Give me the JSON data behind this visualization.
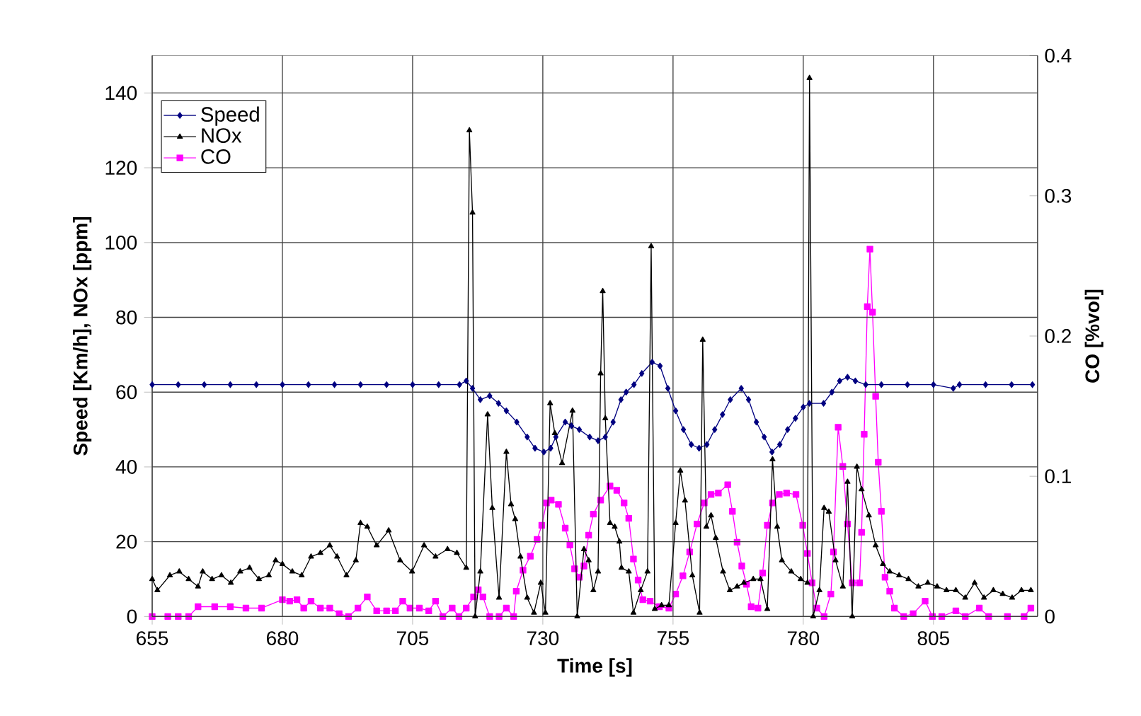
{
  "chart_data": {
    "type": "line",
    "xlabel": "Time [s]",
    "ylabel": "Speed [Km/h], NOx [ppm]",
    "y2label": "CO [%vol]",
    "xlim": [
      655,
      825
    ],
    "xticks": [
      655,
      680,
      705,
      730,
      755,
      780,
      805
    ],
    "ylim": [
      0,
      150
    ],
    "yticks": [
      0,
      20,
      40,
      60,
      80,
      100,
      120,
      140
    ],
    "y2lim": [
      0,
      0.4
    ],
    "y2ticks": [
      0,
      0.1,
      0.2,
      0.3,
      0.4
    ],
    "grid": true,
    "legend": "top left",
    "series": [
      {
        "name": "Speed",
        "color": "#000080",
        "marker": "diamond",
        "x": [
          655,
          660,
          665,
          670,
          675,
          680,
          685,
          690,
          695,
          700,
          705,
          710,
          714,
          715.3,
          716.5,
          718,
          719.8,
          721.5,
          723,
          725,
          727,
          728.5,
          730.2,
          731.5,
          732.5,
          734.3,
          735.5,
          737,
          739,
          740.6,
          742,
          743.5,
          745,
          746,
          747.5,
          749,
          751,
          752.5,
          754,
          755.5,
          757,
          758.5,
          760,
          761.5,
          763,
          764.5,
          766,
          768.1,
          769.5,
          771,
          772.5,
          774,
          775.5,
          777,
          778.5,
          780,
          781.2,
          783.9,
          785.5,
          787,
          788.5,
          790,
          792,
          795,
          800,
          805,
          808.8,
          810,
          815,
          820,
          824
        ],
        "values": [
          62,
          62,
          62,
          62,
          62,
          62,
          62,
          62,
          62,
          62,
          62,
          62,
          62,
          63,
          61,
          58,
          59,
          57,
          55,
          52,
          48,
          45,
          44,
          45,
          48,
          52,
          51,
          50,
          48,
          47,
          48,
          52,
          58,
          60,
          62,
          65,
          68,
          67,
          61,
          55,
          50,
          46,
          45,
          46,
          50,
          54,
          58,
          61,
          58,
          52,
          48,
          44,
          46,
          50,
          53,
          56,
          57,
          57,
          60,
          63,
          64,
          63,
          62,
          62,
          62,
          62,
          61,
          62,
          62,
          62,
          62
        ]
      },
      {
        "name": "NOx",
        "color": "#000000",
        "marker": "triangle",
        "x": [
          655,
          656,
          658.4,
          660.2,
          662,
          663.8,
          664.7,
          666.5,
          668.3,
          670.1,
          671.9,
          673.7,
          675.5,
          677.4,
          678.7,
          680,
          681.9,
          683.7,
          685.5,
          687.3,
          689.1,
          690.5,
          692.3,
          694.1,
          695,
          696.3,
          698.1,
          700.4,
          702.6,
          704.9,
          707.2,
          709.4,
          711.7,
          713.5,
          715.3,
          715.9,
          716.5,
          717,
          718,
          719.4,
          720.3,
          721.6,
          723,
          723.9,
          724.7,
          725.7,
          727,
          728.3,
          729.6,
          730.5,
          731.4,
          732.3,
          733.7,
          735.7,
          736.6,
          737.9,
          738.8,
          739.7,
          740.6,
          741.1,
          741.5,
          742,
          742.9,
          743.8,
          744.7,
          745.1,
          746.5,
          747.4,
          748.8,
          750.1,
          750.8,
          751.5,
          752.8,
          754.2,
          755.5,
          756.4,
          757.3,
          758.7,
          760.1,
          760.7,
          761.4,
          762.3,
          763.2,
          764.6,
          765.9,
          767.3,
          768.6,
          770.4,
          771.8,
          773.1,
          774.1,
          775,
          775.9,
          777.7,
          779.5,
          780.8,
          781.2,
          781.9,
          783.1,
          784,
          784.9,
          786.2,
          787.6,
          788.5,
          789.4,
          790.3,
          791.2,
          792.6,
          793.9,
          795.3,
          796.6,
          798.4,
          800.2,
          802.1,
          803.9,
          805.7,
          807.5,
          809.3,
          811.1,
          812.9,
          814.7,
          816.5,
          818.3,
          820.1,
          821.9,
          823.7
        ],
        "values": [
          10,
          7,
          11,
          12,
          10,
          8,
          12,
          10,
          11,
          9,
          12,
          13,
          10,
          11,
          15,
          14,
          12,
          11,
          16,
          17,
          19,
          16,
          11,
          15,
          25,
          24,
          19,
          23,
          15,
          12,
          19,
          16,
          18,
          17,
          13,
          130,
          108,
          0,
          12,
          54,
          29,
          5,
          44,
          30,
          26,
          16,
          5,
          1,
          9,
          1,
          57,
          49,
          41,
          55,
          0,
          18,
          15,
          7,
          12,
          65,
          87,
          53,
          25,
          24,
          20,
          13,
          12,
          1,
          7,
          12,
          99,
          2,
          3,
          3,
          25,
          39,
          31,
          11,
          1,
          74,
          24,
          27,
          21,
          12,
          7,
          8,
          9,
          10,
          10,
          2,
          42,
          24,
          15,
          12,
          10,
          9,
          144,
          0,
          7,
          29,
          28,
          15,
          8,
          36,
          0,
          40,
          34,
          27,
          19,
          14,
          12,
          11,
          10,
          8,
          9,
          8,
          7,
          7,
          5,
          9,
          5,
          7,
          6,
          5,
          7,
          7
        ]
      },
      {
        "name": "CO",
        "color": "#ff00ff",
        "marker": "square",
        "axis": "y2",
        "x": [
          655,
          658,
          660,
          662,
          663.8,
          667,
          670,
          673,
          676,
          680,
          681.4,
          682.8,
          684.1,
          685.5,
          687.3,
          689.1,
          690.9,
          692.7,
          694.5,
          696.3,
          698.1,
          700,
          701.7,
          703.1,
          704.5,
          706.3,
          708.1,
          709.4,
          710.8,
          712.6,
          713.9,
          715.3,
          716.7,
          717.6,
          718.5,
          719.8,
          721.6,
          723,
          724.4,
          724.9,
          726.2,
          727.6,
          728.9,
          729.8,
          730.7,
          731.6,
          733,
          734.3,
          735.2,
          736.1,
          737,
          737.9,
          738.8,
          739.7,
          741.1,
          742.9,
          744.2,
          745.6,
          746.5,
          747.4,
          748.3,
          749.2,
          750.6,
          752.4,
          754.2,
          755.5,
          756.9,
          758.2,
          759.6,
          761,
          762.3,
          763.7,
          765.5,
          766.4,
          767.3,
          768.2,
          769.1,
          770,
          771.3,
          772.2,
          773.1,
          774.1,
          775.4,
          776.8,
          778.6,
          779.9,
          780.8,
          781.7,
          782.6,
          784,
          785.3,
          785.8,
          786.7,
          787.6,
          788.5,
          789.4,
          790.8,
          791.2,
          791.7,
          792.3,
          792.8,
          793.3,
          793.9,
          794.4,
          795,
          795.7,
          796.6,
          797.5,
          799.3,
          801.1,
          803.4,
          804.8,
          806.6,
          809.3,
          811.1,
          813.8,
          815.6,
          819.2,
          822.4,
          823.7
        ],
        "values": [
          0,
          0,
          0,
          0,
          0.007,
          0.007,
          0.007,
          0.006,
          0.006,
          0.012,
          0.011,
          0.012,
          0.006,
          0.011,
          0.006,
          0.006,
          0.002,
          0,
          0.006,
          0.014,
          0.004,
          0.004,
          0.004,
          0.011,
          0.006,
          0.006,
          0.004,
          0.011,
          0,
          0.006,
          0,
          0.006,
          0.014,
          0.019,
          0.014,
          0,
          0,
          0.006,
          0,
          0.018,
          0.033,
          0.043,
          0.055,
          0.065,
          0.081,
          0.083,
          0.08,
          0.063,
          0.051,
          0.034,
          0.028,
          0.036,
          0.058,
          0.073,
          0.083,
          0.093,
          0.09,
          0.081,
          0.07,
          0.041,
          0.026,
          0.012,
          0.011,
          0.007,
          0.006,
          0.016,
          0.029,
          0.046,
          0.066,
          0.081,
          0.087,
          0.088,
          0.094,
          0.075,
          0.053,
          0.036,
          0.023,
          0.007,
          0.006,
          0.031,
          0.065,
          0.081,
          0.087,
          0.088,
          0.087,
          0.065,
          0.045,
          0.024,
          0.006,
          0,
          0.016,
          0.046,
          0.135,
          0.107,
          0.066,
          0.024,
          0.024,
          0.06,
          0.13,
          0.221,
          0.262,
          0.217,
          0.157,
          0.11,
          0.075,
          0.028,
          0.018,
          0.006,
          0,
          0.002,
          0.011,
          0,
          0,
          0.004,
          0,
          0.006,
          0,
          0,
          0,
          0.006
        ]
      }
    ]
  }
}
